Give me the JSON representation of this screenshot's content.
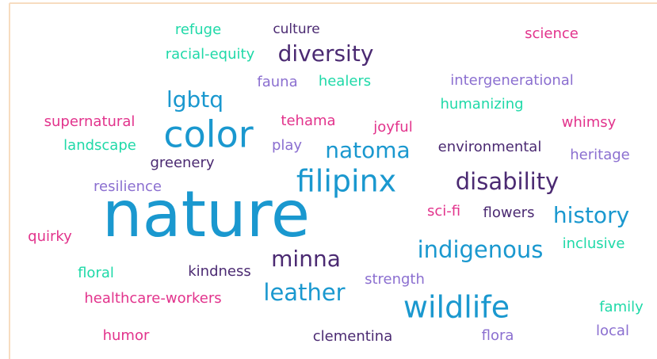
{
  "words": [
    "refuge",
    "culture",
    "science",
    "racial-equity",
    "diversity",
    "fauna",
    "healers",
    "intergenerational",
    "lgbtq",
    "humanizing",
    "supernatural",
    "color",
    "tehama",
    "joyful",
    "whimsy",
    "landscape",
    "play",
    "natoma",
    "environmental",
    "heritage",
    "greenery",
    "filipinx",
    "disability",
    "resilience",
    "nature",
    "sci-fi",
    "flowers",
    "history",
    "quirky",
    "inclusive",
    "indigenous",
    "minna",
    "floral",
    "kindness",
    "strength",
    "healthcare-workers",
    "leather",
    "wildlife",
    "family",
    "humor",
    "clementina",
    "flora",
    "local"
  ]
}
